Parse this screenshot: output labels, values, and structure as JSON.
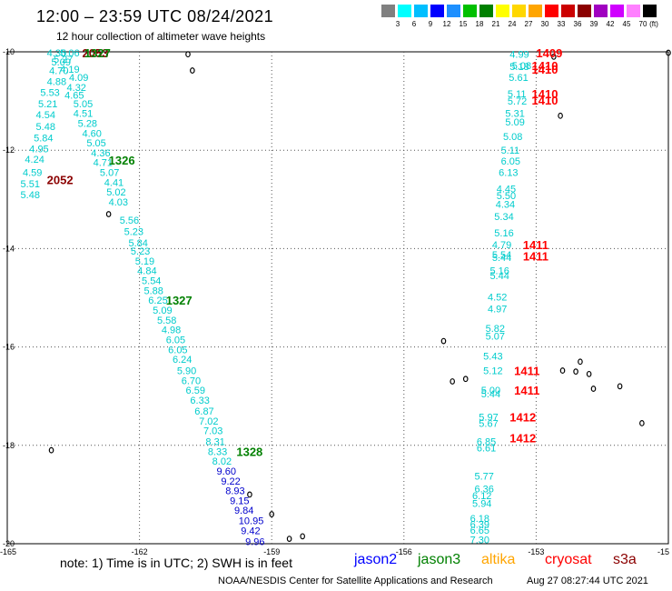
{
  "header": {
    "title": "12:00 – 23:59 UTC 08/24/2021",
    "subtitle": "12 hour collection of altimeter wave heights"
  },
  "colorbar": {
    "colors": [
      "#808080",
      "#00ffff",
      "#00bfff",
      "#0000ff",
      "#1e90ff",
      "#00c000",
      "#008000",
      "#ffff00",
      "#ffd700",
      "#ffa500",
      "#ff0000",
      "#cc0000",
      "#8b0000",
      "#a000c0",
      "#d000ff",
      "#ff80ff",
      "#000000"
    ],
    "ticks": [
      "3",
      "6",
      "9",
      "12",
      "15",
      "18",
      "21",
      "24",
      "27",
      "30",
      "33",
      "36",
      "39",
      "42",
      "45",
      "70"
    ],
    "unit": "(ft)"
  },
  "axes": {
    "lat_ticks": [
      "-10",
      "-12",
      "-14",
      "-16",
      "-18",
      "-20"
    ],
    "lon_ticks": [
      "-165",
      "-162",
      "-159",
      "-156",
      "-153",
      "-15"
    ]
  },
  "tracks": [
    {
      "name": "west_cyan_1",
      "color": "#00cccc",
      "points": [
        {
          "lon": -164.1,
          "lat": -10.02,
          "v": "4.30"
        },
        {
          "lon": -163.8,
          "lat": -10.02,
          "v": "5.06"
        },
        {
          "lon": -164.0,
          "lat": -10.2,
          "v": "5.09"
        },
        {
          "lon": -163.95,
          "lat": -10.15,
          "v": "5.27"
        },
        {
          "lon": -163.8,
          "lat": -10.35,
          "v": "4.19"
        },
        {
          "lon": -164.05,
          "lat": -10.38,
          "v": "4.70"
        },
        {
          "lon": -163.6,
          "lat": -10.52,
          "v": "4.09"
        },
        {
          "lon": -164.1,
          "lat": -10.6,
          "v": "4.88"
        },
        {
          "lon": -163.65,
          "lat": -10.72,
          "v": "4.32"
        },
        {
          "lon": -164.25,
          "lat": -10.82,
          "v": "5.53"
        },
        {
          "lon": -163.7,
          "lat": -10.88,
          "v": "4.65"
        },
        {
          "lon": -164.3,
          "lat": -11.05,
          "v": "5.21"
        },
        {
          "lon": -163.5,
          "lat": -11.05,
          "v": "5.05"
        },
        {
          "lon": -164.35,
          "lat": -11.28,
          "v": "4.54"
        },
        {
          "lon": -163.5,
          "lat": -11.25,
          "v": "4.51"
        },
        {
          "lon": -163.4,
          "lat": -11.45,
          "v": "5.28"
        },
        {
          "lon": -164.35,
          "lat": -11.52,
          "v": "5.48"
        },
        {
          "lon": -163.3,
          "lat": -11.65,
          "v": "4.60"
        },
        {
          "lon": -164.4,
          "lat": -11.75,
          "v": "5.84"
        },
        {
          "lon": -163.2,
          "lat": -11.85,
          "v": "5.05"
        },
        {
          "lon": -164.5,
          "lat": -11.97,
          "v": "4.95"
        },
        {
          "lon": -163.1,
          "lat": -12.05,
          "v": "4.36"
        },
        {
          "lon": -164.6,
          "lat": -12.18,
          "v": "4.24"
        },
        {
          "lon": -163.05,
          "lat": -12.25,
          "v": "4.71"
        },
        {
          "lon": -162.9,
          "lat": -12.45,
          "v": "5.07"
        },
        {
          "lon": -164.65,
          "lat": -12.45,
          "v": "4.59"
        },
        {
          "lon": -162.8,
          "lat": -12.65,
          "v": "4.41"
        },
        {
          "lon": -164.7,
          "lat": -12.68,
          "v": "5.51"
        },
        {
          "lon": -162.75,
          "lat": -12.85,
          "v": "5.02"
        },
        {
          "lon": -164.7,
          "lat": -12.9,
          "v": "5.48"
        },
        {
          "lon": -162.7,
          "lat": -13.05,
          "v": "4.03"
        },
        {
          "lon": -162.45,
          "lat": -13.42,
          "v": "5.56"
        },
        {
          "lon": -162.35,
          "lat": -13.65,
          "v": "5.23"
        },
        {
          "lon": -162.25,
          "lat": -13.88,
          "v": "5.84"
        },
        {
          "lon": -162.2,
          "lat": -14.05,
          "v": "5.23"
        },
        {
          "lon": -162.1,
          "lat": -14.25,
          "v": "5.19"
        },
        {
          "lon": -162.05,
          "lat": -14.45,
          "v": "4.84"
        },
        {
          "lon": -161.95,
          "lat": -14.65,
          "v": "5.54"
        },
        {
          "lon": -161.9,
          "lat": -14.85,
          "v": "5.88"
        },
        {
          "lon": -161.8,
          "lat": -15.05,
          "v": "6.25"
        },
        {
          "lon": -161.7,
          "lat": -15.25,
          "v": "5.09"
        },
        {
          "lon": -161.6,
          "lat": -15.45,
          "v": "5.58"
        },
        {
          "lon": -161.5,
          "lat": -15.65,
          "v": "4.98"
        },
        {
          "lon": -161.4,
          "lat": -15.85,
          "v": "6.05"
        },
        {
          "lon": -161.35,
          "lat": -16.05,
          "v": "6.05"
        },
        {
          "lon": -161.25,
          "lat": -16.25,
          "v": "6.24"
        },
        {
          "lon": -161.15,
          "lat": -16.48,
          "v": "5.90"
        },
        {
          "lon": -161.05,
          "lat": -16.68,
          "v": "6.70"
        },
        {
          "lon": -160.95,
          "lat": -16.88,
          "v": "6.59"
        },
        {
          "lon": -160.85,
          "lat": -17.08,
          "v": "6.33"
        },
        {
          "lon": -160.75,
          "lat": -17.3,
          "v": "6.87"
        },
        {
          "lon": -160.65,
          "lat": -17.5,
          "v": "7.02"
        },
        {
          "lon": -160.55,
          "lat": -17.7,
          "v": "7.03"
        },
        {
          "lon": -160.5,
          "lat": -17.92,
          "v": "8.31"
        },
        {
          "lon": -160.45,
          "lat": -18.12,
          "v": "8.33"
        },
        {
          "lon": -160.35,
          "lat": -18.32,
          "v": "8.02"
        }
      ]
    },
    {
      "name": "west_blue",
      "color": "#0000cc",
      "points": [
        {
          "lon": -160.25,
          "lat": -18.52,
          "v": "9.60"
        },
        {
          "lon": -160.15,
          "lat": -18.72,
          "v": "9.22"
        },
        {
          "lon": -160.05,
          "lat": -18.92,
          "v": "8.93"
        },
        {
          "lon": -159.95,
          "lat": -19.12,
          "v": "9.15"
        },
        {
          "lon": -159.85,
          "lat": -19.32,
          "v": "9.84"
        },
        {
          "lon": -159.75,
          "lat": -19.53,
          "v": "10.95"
        },
        {
          "lon": -159.7,
          "lat": -19.73,
          "v": "9.42"
        },
        {
          "lon": -159.6,
          "lat": -19.95,
          "v": "9.96"
        }
      ]
    },
    {
      "name": "east_cyan",
      "color": "#00cccc",
      "points": [
        {
          "lon": -153.6,
          "lat": -10.05,
          "v": "4.99"
        },
        {
          "lon": -153.6,
          "lat": -10.3,
          "v": "5.18"
        },
        {
          "lon": -153.55,
          "lat": -10.28,
          "v": "5.08"
        },
        {
          "lon": -153.62,
          "lat": -10.52,
          "v": "5.61"
        },
        {
          "lon": -153.65,
          "lat": -10.85,
          "v": "5.11"
        },
        {
          "lon": -153.65,
          "lat": -11.0,
          "v": "5.72"
        },
        {
          "lon": -153.7,
          "lat": -11.25,
          "v": "5.31"
        },
        {
          "lon": -153.7,
          "lat": -11.42,
          "v": "5.09"
        },
        {
          "lon": -153.75,
          "lat": -11.72,
          "v": "5.08"
        },
        {
          "lon": -153.8,
          "lat": -12.0,
          "v": "5.11"
        },
        {
          "lon": -153.8,
          "lat": -12.22,
          "v": "6.05"
        },
        {
          "lon": -153.85,
          "lat": -12.45,
          "v": "6.13"
        },
        {
          "lon": -153.9,
          "lat": -12.78,
          "v": "4.45"
        },
        {
          "lon": -153.9,
          "lat": -12.92,
          "v": "5.50"
        },
        {
          "lon": -153.92,
          "lat": -13.1,
          "v": "4.34"
        },
        {
          "lon": -153.95,
          "lat": -13.35,
          "v": "5.34"
        },
        {
          "lon": -153.95,
          "lat": -13.68,
          "v": "5.16"
        },
        {
          "lon": -154.0,
          "lat": -13.92,
          "v": "4.79"
        },
        {
          "lon": -154.0,
          "lat": -14.12,
          "v": "5.54"
        },
        {
          "lon": -154.0,
          "lat": -14.18,
          "v": "5.44"
        },
        {
          "lon": -154.05,
          "lat": -14.45,
          "v": "5.16"
        },
        {
          "lon": -154.05,
          "lat": -14.55,
          "v": "5.44"
        },
        {
          "lon": -154.1,
          "lat": -14.98,
          "v": "4.52"
        },
        {
          "lon": -154.1,
          "lat": -15.22,
          "v": "4.97"
        },
        {
          "lon": -154.15,
          "lat": -15.62,
          "v": "5.82"
        },
        {
          "lon": -154.15,
          "lat": -15.78,
          "v": "5.07"
        },
        {
          "lon": -154.2,
          "lat": -16.18,
          "v": "5.43"
        },
        {
          "lon": -154.2,
          "lat": -16.48,
          "v": "5.12"
        },
        {
          "lon": -154.25,
          "lat": -16.88,
          "v": "5.00"
        },
        {
          "lon": -154.25,
          "lat": -16.95,
          "v": "5.44"
        },
        {
          "lon": -154.3,
          "lat": -17.42,
          "v": "5.97"
        },
        {
          "lon": -154.3,
          "lat": -17.55,
          "v": "5.67"
        },
        {
          "lon": -154.35,
          "lat": -17.92,
          "v": "6.85"
        },
        {
          "lon": -154.35,
          "lat": -18.05,
          "v": "6.61"
        },
        {
          "lon": -154.4,
          "lat": -18.62,
          "v": "5.77"
        },
        {
          "lon": -154.4,
          "lat": -18.88,
          "v": "6.36"
        },
        {
          "lon": -154.45,
          "lat": -19.02,
          "v": "6.12"
        },
        {
          "lon": -154.45,
          "lat": -19.18,
          "v": "5.94"
        },
        {
          "lon": -154.5,
          "lat": -19.48,
          "v": "6.18"
        },
        {
          "lon": -154.5,
          "lat": -19.6,
          "v": "6.39"
        },
        {
          "lon": -154.5,
          "lat": -19.72,
          "v": "6.65"
        },
        {
          "lon": -154.5,
          "lat": -19.92,
          "v": "7.30"
        }
      ]
    }
  ],
  "pass_labels": [
    {
      "lon": -163.3,
      "lat": -10.02,
      "v": "2053",
      "color": "#8b0000"
    },
    {
      "lon": -163.25,
      "lat": -10.02,
      "v": "1327",
      "color": "#008000"
    },
    {
      "lon": -164.1,
      "lat": -12.6,
      "v": "2052",
      "color": "#8b0000"
    },
    {
      "lon": -162.7,
      "lat": -12.2,
      "v": "1326",
      "color": "#008000"
    },
    {
      "lon": -161.4,
      "lat": -15.05,
      "v": "1327",
      "color": "#008000"
    },
    {
      "lon": -159.8,
      "lat": -18.12,
      "v": "1328",
      "color": "#008000"
    },
    {
      "lon": -153.0,
      "lat": -10.02,
      "v": "1409",
      "color": "#ff0000"
    },
    {
      "lon": -153.1,
      "lat": -10.28,
      "v": "1410",
      "color": "#ff0000"
    },
    {
      "lon": -153.1,
      "lat": -10.35,
      "v": "1410",
      "color": "#ff0000"
    },
    {
      "lon": -153.1,
      "lat": -10.85,
      "v": "1410",
      "color": "#ff0000"
    },
    {
      "lon": -153.1,
      "lat": -10.98,
      "v": "1410",
      "color": "#ff0000"
    },
    {
      "lon": -153.3,
      "lat": -13.92,
      "v": "1411",
      "color": "#ff0000"
    },
    {
      "lon": -153.3,
      "lat": -14.15,
      "v": "1411",
      "color": "#ff0000"
    },
    {
      "lon": -153.5,
      "lat": -16.48,
      "v": "1411",
      "color": "#ff0000"
    },
    {
      "lon": -153.5,
      "lat": -16.88,
      "v": "1411",
      "color": "#ff0000"
    },
    {
      "lon": -153.6,
      "lat": -17.42,
      "v": "1412",
      "color": "#ff0000"
    },
    {
      "lon": -153.6,
      "lat": -17.85,
      "v": "1412",
      "color": "#ff0000"
    }
  ],
  "islands": [
    {
      "lon": -160.9,
      "lat": -10.05
    },
    {
      "lon": -160.8,
      "lat": -10.38
    },
    {
      "lon": -162.7,
      "lat": -13.3
    },
    {
      "lon": -164.0,
      "lat": -18.1
    },
    {
      "lon": -159.5,
      "lat": -19.0
    },
    {
      "lon": -159.0,
      "lat": -19.4
    },
    {
      "lon": -158.6,
      "lat": -19.9
    },
    {
      "lon": -158.3,
      "lat": -19.85
    },
    {
      "lon": -152.45,
      "lat": -11.3
    },
    {
      "lon": -152.6,
      "lat": -10.1
    },
    {
      "lon": -150.0,
      "lat": -10.02
    },
    {
      "lon": -154.6,
      "lat": -16.65
    },
    {
      "lon": -154.9,
      "lat": -16.7
    },
    {
      "lon": -152.4,
      "lat": -16.48
    },
    {
      "lon": -152.1,
      "lat": -16.5
    },
    {
      "lon": -151.8,
      "lat": -16.55
    },
    {
      "lon": -151.7,
      "lat": -16.85
    },
    {
      "lon": -151.1,
      "lat": -16.8
    },
    {
      "lon": -150.6,
      "lat": -17.55
    },
    {
      "lon": -152.0,
      "lat": -16.3
    },
    {
      "lon": -155.1,
      "lat": -15.88
    }
  ],
  "footer": {
    "note": "note:  1) Time is in UTC; 2) SWH is in feet",
    "sat_jason2": "jason2",
    "sat_jason3": "jason3",
    "sat_altika": "altika",
    "sat_cryosat": "cryosat",
    "sat_s3a": "s3a",
    "colors": {
      "jason2": "#0000ff",
      "jason3": "#008000",
      "altika": "#ffa500",
      "cryosat": "#ff0000",
      "s3a": "#8b0000"
    },
    "credit": "NOAA/NESDIS Center for Satellite Applications and Research",
    "timestamp": "Aug 27 08:27:44 UTC 2021"
  }
}
